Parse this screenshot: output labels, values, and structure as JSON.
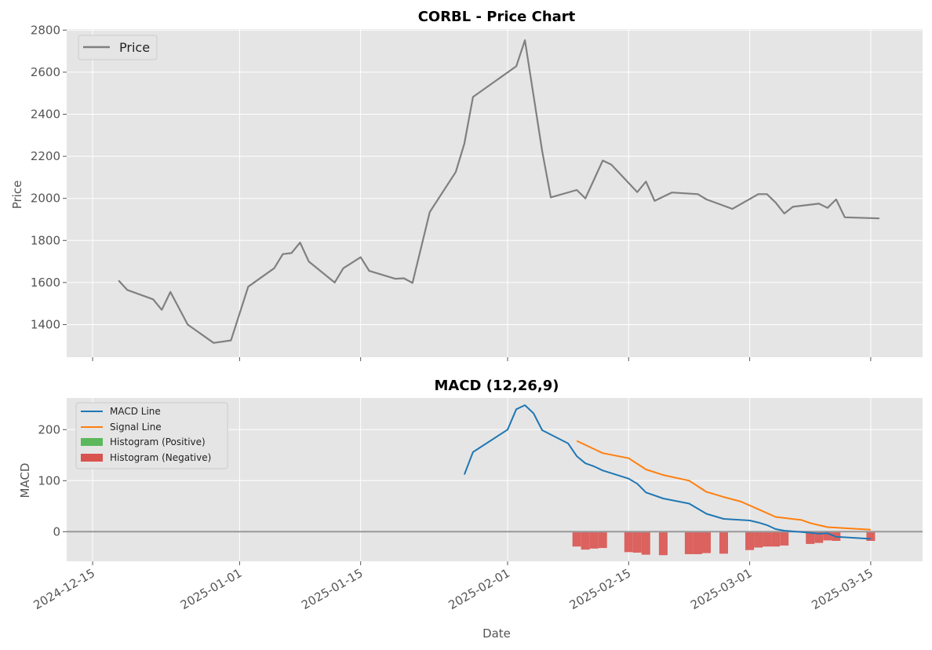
{
  "chart_data": [
    {
      "type": "line",
      "title": "CORBL - Price Chart",
      "xlabel": "",
      "ylabel": "Price",
      "ylim": [
        1245,
        2805
      ],
      "yticks": [
        1400,
        1600,
        1800,
        2000,
        2200,
        2400,
        2600,
        2800
      ],
      "grid": true,
      "legend": "top-left",
      "colors": {
        "Price": "#808080"
      },
      "series": [
        {
          "name": "Price",
          "points": [
            [
              "2024-12-18",
              1610
            ],
            [
              "2024-12-19",
              1565
            ],
            [
              "2024-12-22",
              1520
            ],
            [
              "2024-12-23",
              1470
            ],
            [
              "2024-12-24",
              1555
            ],
            [
              "2024-12-26",
              1400
            ],
            [
              "2024-12-29",
              1313
            ],
            [
              "2024-12-31",
              1325
            ],
            [
              "2025-01-02",
              1580
            ],
            [
              "2025-01-05",
              1668
            ],
            [
              "2025-01-06",
              1735
            ],
            [
              "2025-01-07",
              1740
            ],
            [
              "2025-01-08",
              1790
            ],
            [
              "2025-01-09",
              1700
            ],
            [
              "2025-01-12",
              1600
            ],
            [
              "2025-01-13",
              1668
            ],
            [
              "2025-01-15",
              1720
            ],
            [
              "2025-01-16",
              1655
            ],
            [
              "2025-01-19",
              1618
            ],
            [
              "2025-01-20",
              1620
            ],
            [
              "2025-01-21",
              1598
            ],
            [
              "2025-01-23",
              1935
            ],
            [
              "2025-01-26",
              2125
            ],
            [
              "2025-01-27",
              2260
            ],
            [
              "2025-01-28",
              2482
            ],
            [
              "2025-02-02",
              2628
            ],
            [
              "2025-02-03",
              2752
            ],
            [
              "2025-02-05",
              2225
            ],
            [
              "2025-02-06",
              2005
            ],
            [
              "2025-02-09",
              2040
            ],
            [
              "2025-02-10",
              2000
            ],
            [
              "2025-02-12",
              2180
            ],
            [
              "2025-02-13",
              2160
            ],
            [
              "2025-02-16",
              2030
            ],
            [
              "2025-02-17",
              2080
            ],
            [
              "2025-02-18",
              1988
            ],
            [
              "2025-02-20",
              2028
            ],
            [
              "2025-02-23",
              2020
            ],
            [
              "2025-02-24",
              1995
            ],
            [
              "2025-02-27",
              1950
            ],
            [
              "2025-03-02",
              2020
            ],
            [
              "2025-03-03",
              2020
            ],
            [
              "2025-03-04",
              1980
            ],
            [
              "2025-03-05",
              1928
            ],
            [
              "2025-03-06",
              1960
            ],
            [
              "2025-03-09",
              1975
            ],
            [
              "2025-03-10",
              1955
            ],
            [
              "2025-03-11",
              1995
            ],
            [
              "2025-03-12",
              1910
            ],
            [
              "2025-03-16",
              1905
            ]
          ]
        }
      ]
    },
    {
      "type": "line",
      "title": "MACD (12,26,9)",
      "xlabel": "Date",
      "ylabel": "MACD",
      "ylim": [
        -58,
        262
      ],
      "yticks": [
        0,
        100,
        200
      ],
      "grid": true,
      "legend": "top-left",
      "zero_line": true,
      "xticks": [
        "2024-12-15",
        "2025-01-01",
        "2025-01-15",
        "2025-02-01",
        "2025-02-15",
        "2025-03-01",
        "2025-03-15"
      ],
      "colors": {
        "MACD Line": "#1f77b4",
        "Signal Line": "#ff7f0e",
        "Histogram (Positive)": "#5cb85c",
        "Histogram (Negative)": "#d9534f",
        "zero": "#999999"
      },
      "series": [
        {
          "name": "MACD Line",
          "points": [
            [
              "2025-01-27",
              112
            ],
            [
              "2025-01-28",
              156
            ],
            [
              "2025-02-01",
              200
            ],
            [
              "2025-02-02",
              240
            ],
            [
              "2025-02-03",
              248
            ],
            [
              "2025-02-04",
              232
            ],
            [
              "2025-02-05",
              199
            ],
            [
              "2025-02-08",
              173
            ],
            [
              "2025-02-09",
              148
            ],
            [
              "2025-02-10",
              134
            ],
            [
              "2025-02-11",
              128
            ],
            [
              "2025-02-12",
              120
            ],
            [
              "2025-02-15",
              104
            ],
            [
              "2025-02-16",
              94
            ],
            [
              "2025-02-17",
              77
            ],
            [
              "2025-02-19",
              65
            ],
            [
              "2025-02-22",
              55
            ],
            [
              "2025-02-24",
              35
            ],
            [
              "2025-02-26",
              25
            ],
            [
              "2025-03-01",
              22
            ],
            [
              "2025-03-02",
              18
            ],
            [
              "2025-03-03",
              13
            ],
            [
              "2025-03-04",
              5
            ],
            [
              "2025-03-05",
              2
            ],
            [
              "2025-03-08",
              -2
            ],
            [
              "2025-03-09",
              -4
            ],
            [
              "2025-03-10",
              -3
            ],
            [
              "2025-03-11",
              -10
            ],
            [
              "2025-03-14",
              -13
            ],
            [
              "2025-03-15",
              -14
            ]
          ]
        },
        {
          "name": "Signal Line",
          "points": [
            [
              "2025-02-09",
              178
            ],
            [
              "2025-02-12",
              154
            ],
            [
              "2025-02-15",
              144
            ],
            [
              "2025-02-17",
              122
            ],
            [
              "2025-02-19",
              111
            ],
            [
              "2025-02-22",
              100
            ],
            [
              "2025-02-24",
              78
            ],
            [
              "2025-02-26",
              68
            ],
            [
              "2025-02-28",
              59
            ],
            [
              "2025-03-02",
              44
            ],
            [
              "2025-03-04",
              29
            ],
            [
              "2025-03-07",
              23
            ],
            [
              "2025-03-08",
              17
            ],
            [
              "2025-03-10",
              9
            ],
            [
              "2025-03-15",
              4
            ]
          ]
        },
        {
          "name": "Histogram (Positive)",
          "bars": []
        },
        {
          "name": "Histogram (Negative)",
          "bars": [
            [
              "2025-02-09",
              -29
            ],
            [
              "2025-02-10",
              -35
            ],
            [
              "2025-02-11",
              -33
            ],
            [
              "2025-02-12",
              -32
            ],
            [
              "2025-02-15",
              -40
            ],
            [
              "2025-02-16",
              -41
            ],
            [
              "2025-02-17",
              -45
            ],
            [
              "2025-02-19",
              -46
            ],
            [
              "2025-02-22",
              -44
            ],
            [
              "2025-02-23",
              -44
            ],
            [
              "2025-02-24",
              -42
            ],
            [
              "2025-02-26",
              -43
            ],
            [
              "2025-03-01",
              -36
            ],
            [
              "2025-03-02",
              -31
            ],
            [
              "2025-03-03",
              -29
            ],
            [
              "2025-03-04",
              -29
            ],
            [
              "2025-03-05",
              -27
            ],
            [
              "2025-03-08",
              -24
            ],
            [
              "2025-03-09",
              -22
            ],
            [
              "2025-03-10",
              -17
            ],
            [
              "2025-03-11",
              -18
            ],
            [
              "2025-03-15",
              -18
            ]
          ]
        }
      ]
    }
  ]
}
